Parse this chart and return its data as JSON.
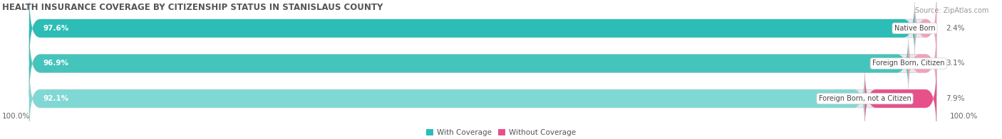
{
  "title": "HEALTH INSURANCE COVERAGE BY CITIZENSHIP STATUS IN STANISLAUS COUNTY",
  "source": "Source: ZipAtlas.com",
  "categories": [
    "Native Born",
    "Foreign Born, Citizen",
    "Foreign Born, not a Citizen"
  ],
  "with_coverage": [
    97.6,
    96.9,
    92.1
  ],
  "without_coverage": [
    2.4,
    3.1,
    7.9
  ],
  "teal_colors": [
    "#2bbdb6",
    "#45c4bc",
    "#80d8d4"
  ],
  "pink_colors": [
    "#f4a0b8",
    "#f4a0b8",
    "#e8508a"
  ],
  "bar_bg_color": "#e8e8eb",
  "title_fontsize": 8.5,
  "label_fontsize": 7.5,
  "tick_fontsize": 7.5,
  "legend_fontsize": 7.5,
  "source_fontsize": 7.0,
  "left_label": "100.0%",
  "right_label": "100.0%"
}
